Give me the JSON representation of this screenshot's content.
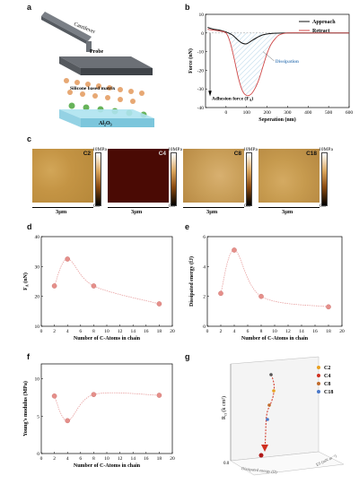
{
  "panels": {
    "a": {
      "label": "a",
      "cantilever": "Cantilever",
      "probe": "Probe",
      "matrix": "Silicone based matrix",
      "substrate": "Al",
      "substrate_sub": "2",
      "substrate_tail": "O",
      "substrate_sub2": "3"
    },
    "b": {
      "label": "b"
    },
    "c": {
      "label": "c",
      "maps": [
        {
          "name": "C2",
          "cbar_max": "10MPa",
          "cbar_min": "0.0",
          "scale": "3μm"
        },
        {
          "name": "C4",
          "cbar_max": "10MPa",
          "cbar_min": "0.0",
          "scale": "3μm"
        },
        {
          "name": "C8",
          "cbar_max": "10MPa",
          "cbar_min": "0.0",
          "scale": "3μm"
        },
        {
          "name": "C18",
          "cbar_max": "10MPa",
          "cbar_min": "0.0",
          "scale": "3μm"
        }
      ]
    },
    "d": {
      "label": "d"
    },
    "e": {
      "label": "e"
    },
    "f": {
      "label": "f"
    },
    "g": {
      "label": "g",
      "zlabel": "R",
      "zlabel_sub": "ct",
      "zlabel_tail": " (k cm²)",
      "xlabel": "Dissipated energy (fJ)",
      "ylabel": "ES (mN m⁻¹)",
      "zero": "0.0",
      "legend": [
        "C2",
        "C4",
        "C8",
        "C18"
      ],
      "colors": {
        "C2": "#e8a020",
        "C4": "#d03020",
        "C8": "#c06a2a",
        "C18": "#4a78c8"
      }
    }
  },
  "chart_data": [
    {
      "type": "line",
      "panel": "b",
      "xlabel": "Seperation (nm)",
      "ylabel": "Force (nN)",
      "xlim": [
        -100,
        600
      ],
      "ylim": [
        -40,
        10
      ],
      "xticks": [
        0,
        100,
        200,
        300,
        400,
        500,
        600
      ],
      "yticks": [
        10,
        0,
        -10,
        -20,
        -30,
        -40
      ],
      "series": [
        {
          "name": "Approach",
          "color": "#111111",
          "x": [
            -90,
            -60,
            -30,
            0,
            30,
            60,
            80,
            100,
            120,
            150,
            180,
            220,
            300,
            400,
            500,
            600
          ],
          "y": [
            3,
            2,
            1.5,
            0.5,
            -1,
            -4,
            -5.5,
            -5.8,
            -4.5,
            -2.5,
            -1,
            -0.3,
            0,
            0,
            0,
            0
          ]
        },
        {
          "name": "Retract",
          "color": "#d04848",
          "x": [
            -90,
            -60,
            -30,
            0,
            20,
            40,
            60,
            80,
            100,
            120,
            140,
            160,
            180,
            200,
            220,
            240,
            260,
            300,
            400,
            500,
            600
          ],
          "y": [
            2,
            1.5,
            1,
            0,
            -5,
            -14,
            -24,
            -31,
            -33.5,
            -33,
            -30,
            -25,
            -18,
            -11,
            -6,
            -3,
            -1,
            0,
            0,
            0,
            0
          ]
        }
      ],
      "annotations": [
        "Dissipation",
        "Adhesion force (F"
      ],
      "annotation_sub": "A",
      "annotation_tail": ")"
    },
    {
      "type": "line",
      "panel": "d",
      "ylabel": "F",
      "ylabel_sub": "A",
      "ylabel_tail": " (nN)",
      "xlabel": "Number of C-Atoms in chain",
      "xlim": [
        0,
        20
      ],
      "ylim": [
        10,
        40
      ],
      "xticks": [
        0,
        2,
        4,
        6,
        8,
        10,
        12,
        14,
        16,
        18,
        20
      ],
      "yticks": [
        10,
        20,
        30,
        40
      ],
      "x": [
        2,
        4,
        8,
        18
      ],
      "y": [
        23.5,
        32.5,
        23.5,
        17.5
      ]
    },
    {
      "type": "line",
      "panel": "e",
      "ylabel": "Dissipated energy (fJ)",
      "xlabel": "Number of C-Atoms in chain",
      "xlim": [
        0,
        20
      ],
      "ylim": [
        0,
        6
      ],
      "xticks": [
        0,
        2,
        4,
        6,
        8,
        10,
        12,
        14,
        16,
        18,
        20
      ],
      "yticks": [
        0,
        2,
        4,
        6
      ],
      "x": [
        2,
        4,
        8,
        18
      ],
      "y": [
        2.2,
        5.1,
        2.0,
        1.3
      ]
    },
    {
      "type": "line",
      "panel": "f",
      "ylabel": "Young's modulus (MPa)",
      "xlabel": "Number of C-Atoms in chain",
      "xlim": [
        0,
        20
      ],
      "ylim": [
        0,
        12
      ],
      "xticks": [
        0,
        2,
        4,
        6,
        8,
        10,
        12,
        14,
        16,
        18,
        20
      ],
      "yticks": [
        0,
        5,
        10
      ],
      "x": [
        2,
        4,
        8,
        18
      ],
      "y": [
        7.7,
        4.4,
        7.9,
        7.8
      ]
    }
  ]
}
